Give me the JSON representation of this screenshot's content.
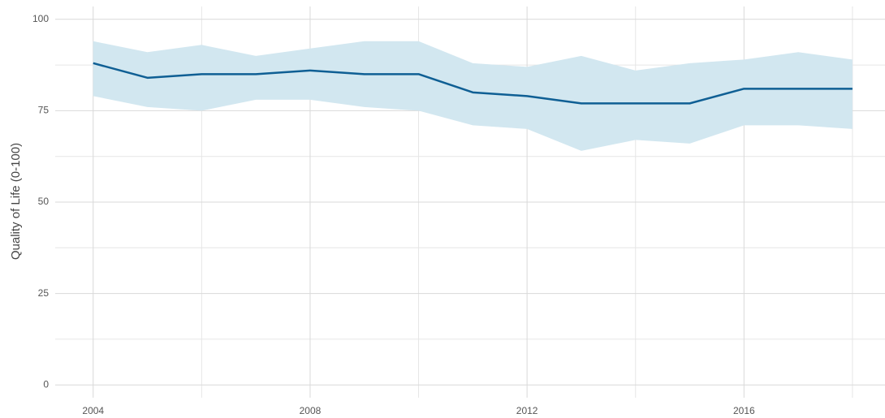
{
  "chart_data": {
    "type": "line",
    "y_label": "Quality of Life (0-100)",
    "x": [
      2004,
      2005,
      2006,
      2007,
      2008,
      2009,
      2010,
      2011,
      2012,
      2013,
      2014,
      2015,
      2016,
      2017,
      2018
    ],
    "series": [
      {
        "color": "#0f5f94",
        "band_color": "#d2e7f0",
        "values": [
          88,
          84,
          85,
          85,
          86,
          85,
          85,
          80,
          79,
          77,
          77,
          77,
          81,
          81,
          81
        ],
        "upper": [
          94,
          91,
          93,
          90,
          92,
          94,
          94,
          88,
          87,
          90,
          86,
          88,
          89,
          91,
          89
        ],
        "lower": [
          79,
          76,
          75,
          78,
          78,
          76,
          75,
          71,
          70,
          64,
          67,
          66,
          71,
          71,
          70
        ]
      }
    ],
    "xlim": [
      2003.3,
      2018.6
    ],
    "xticks": [
      2004,
      2008,
      2012,
      2016
    ],
    "xminor": [
      2006,
      2010,
      2014,
      2018
    ],
    "ylim": [
      -3.5,
      103.5
    ],
    "yticks": [
      0,
      25,
      50,
      75,
      100
    ],
    "yminor": [
      12.5,
      37.5,
      62.5,
      87.5
    ],
    "grid": true
  }
}
